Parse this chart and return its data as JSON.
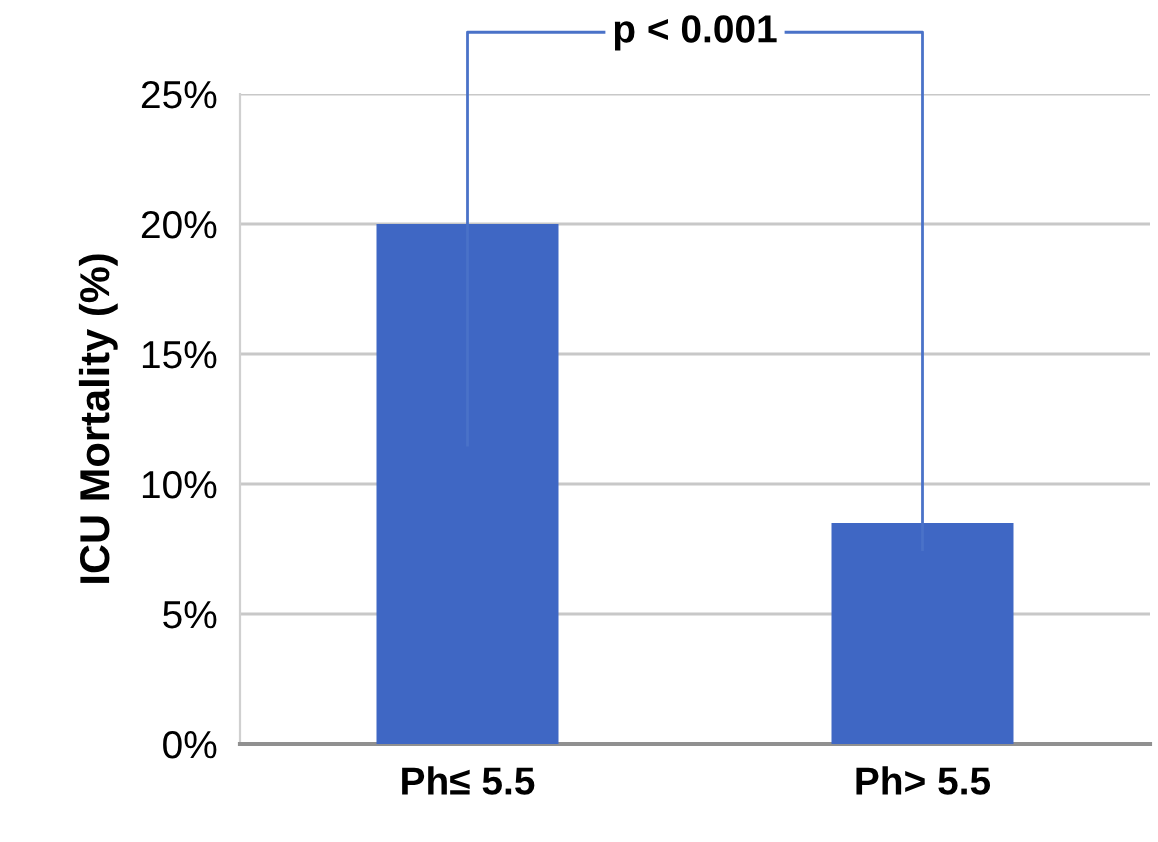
{
  "chart_data": {
    "type": "bar",
    "ylabel": "ICU Mortality (%)",
    "categories": [
      "Ph≤ 5.5",
      "Ph> 5.5"
    ],
    "values": [
      20,
      8.5
    ],
    "color": "#3f67c4",
    "ylim": [
      0,
      25
    ],
    "yticks": [
      {
        "value": 0,
        "label": "0%"
      },
      {
        "value": 5,
        "label": "5%"
      },
      {
        "value": 10,
        "label": "10%"
      },
      {
        "value": 15,
        "label": "15%"
      },
      {
        "value": 20,
        "label": "20%"
      },
      {
        "value": 25,
        "label": "25%"
      }
    ],
    "grid": "y",
    "annotations": [
      "p < 0.001"
    ]
  }
}
